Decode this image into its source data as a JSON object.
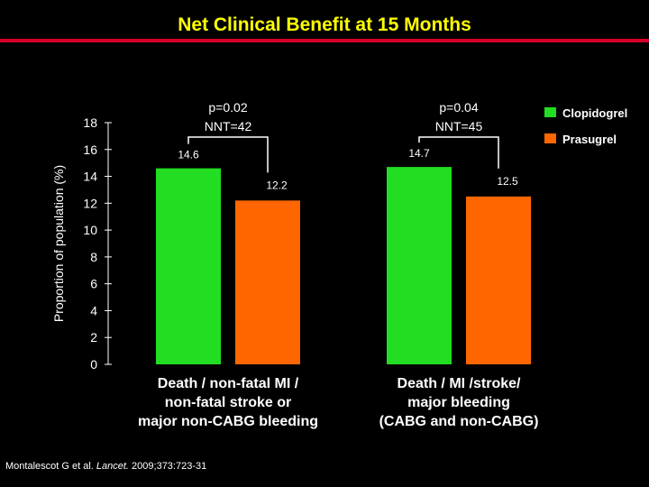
{
  "slide": {
    "title": "Net Clinical Benefit at 15 Months",
    "citation_authors": "Montalescot G et al.",
    "citation_journal": "Lancet.",
    "citation_ref": "2009;373:723-31",
    "title_color": "#ffff00",
    "rule_color": "#d8002a",
    "background": "#000000"
  },
  "chart_data": {
    "type": "bar",
    "title": "",
    "ylabel": "Proportion of population (%)",
    "xlabel": "",
    "ylim": [
      0,
      18
    ],
    "yticks": [
      0,
      2,
      4,
      6,
      8,
      10,
      12,
      14,
      16,
      18
    ],
    "categories": [
      [
        "Death / non-fatal MI /",
        "non-fatal stroke or",
        "major non-CABG bleeding"
      ],
      [
        "Death / MI /stroke/",
        "major bleeding",
        "(CABG and non-CABG)"
      ]
    ],
    "series": [
      {
        "name": "Clopidogrel",
        "color": "#22dd22",
        "values": [
          14.6,
          14.7
        ],
        "labels": [
          "14.6",
          "14.7"
        ]
      },
      {
        "name": "Prasugrel",
        "color": "#ff6600",
        "values": [
          12.2,
          12.5
        ],
        "labels": [
          "12.2",
          "12.5"
        ]
      }
    ],
    "annotations": [
      {
        "p_value": "p=0.02",
        "nnt": "NNT=42"
      },
      {
        "p_value": "p=0.04",
        "nnt": "NNT=45"
      }
    ],
    "legend_position": "top-right",
    "grid": false
  }
}
